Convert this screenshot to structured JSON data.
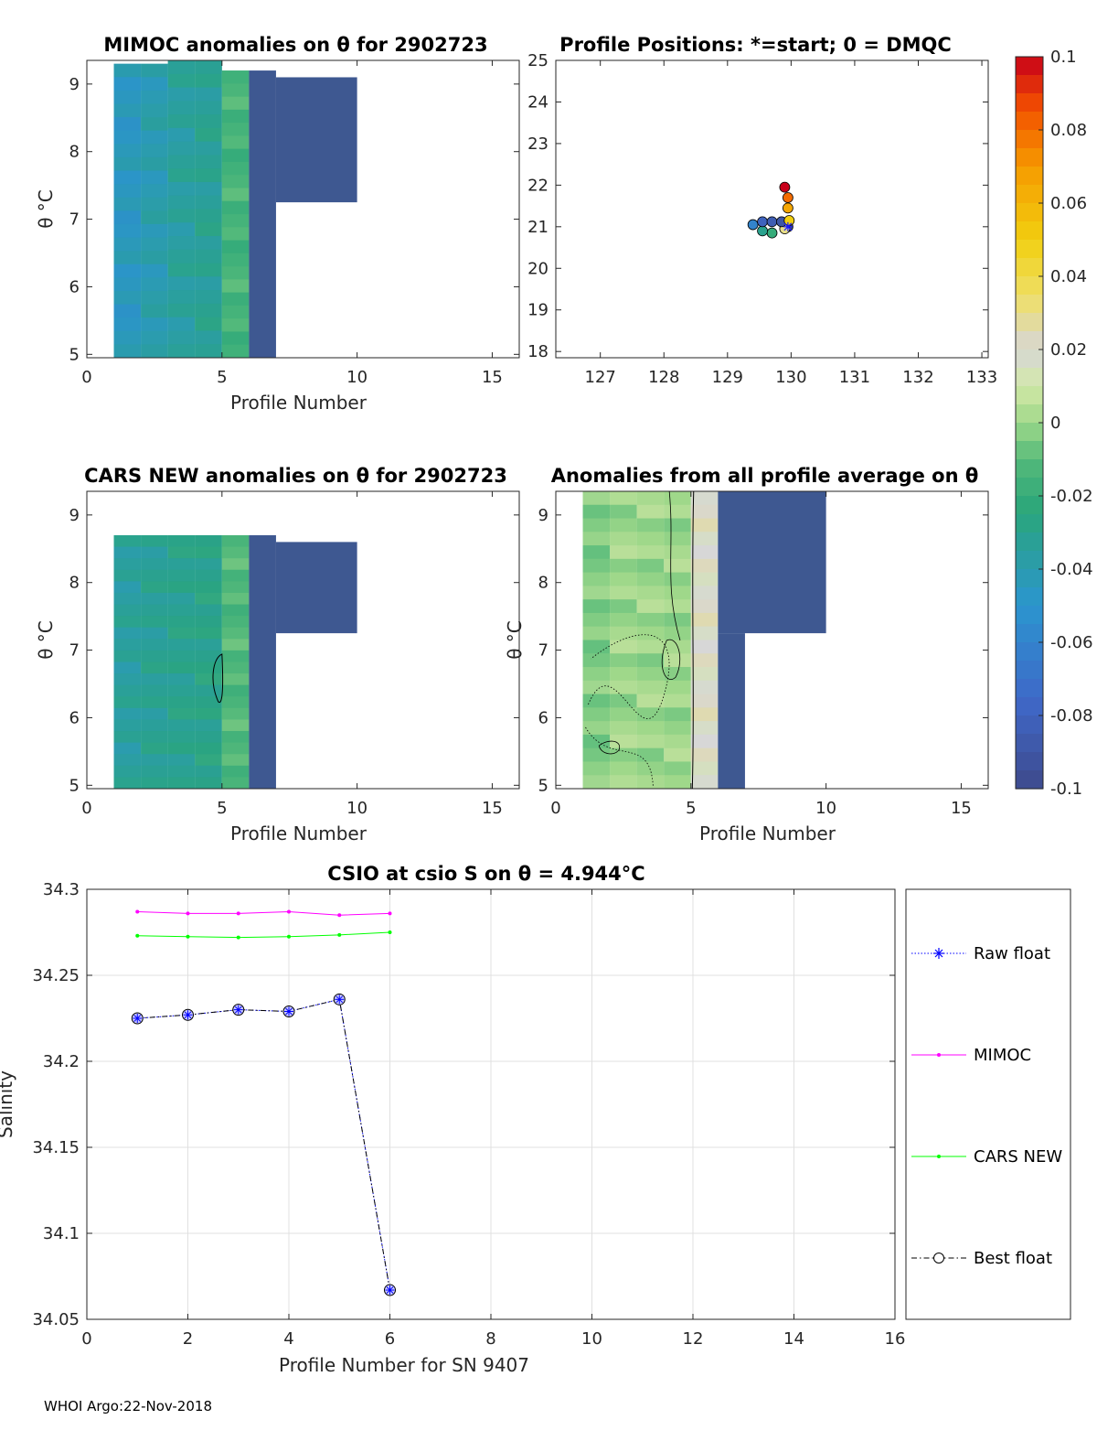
{
  "footer": "WHOI Argo:22-Nov-2018",
  "colorbar": {
    "ticks": [
      "0.1",
      "0.08",
      "0.06",
      "0.04",
      "0.02",
      "0",
      "-0.02",
      "-0.04",
      "-0.06",
      "-0.08",
      "-0.1"
    ],
    "range": [
      -0.1,
      0.1
    ]
  },
  "chart_data": [
    {
      "id": "mimoc",
      "type": "heatmap",
      "title": "MIMOC anomalies on θ  for 2902723",
      "xlabel": "Profile Number",
      "ylabel": "θ °C",
      "xlim": [
        0,
        16
      ],
      "ylim": [
        4.95,
        9.35
      ],
      "xticks": [
        "0",
        "5",
        "10",
        "15"
      ],
      "yticks": [
        "5",
        "6",
        "7",
        "8",
        "9"
      ],
      "columns": [
        {
          "x0": 1,
          "x1": 2,
          "top": 9.3,
          "value": -0.045
        },
        {
          "x0": 2,
          "x1": 3,
          "top": 9.3,
          "value": -0.04
        },
        {
          "x0": 3,
          "x1": 4,
          "top": 9.35,
          "value": -0.035
        },
        {
          "x0": 4,
          "x1": 5,
          "top": 9.35,
          "value": -0.032
        },
        {
          "x0": 5,
          "x1": 6,
          "top": 9.2,
          "value": -0.015
        }
      ],
      "no_data_blocks": [
        {
          "x0": 6,
          "x1": 7,
          "y0": 4.95,
          "y1": 9.2
        },
        {
          "x0": 7,
          "x1": 10,
          "y0": 7.25,
          "y1": 9.1
        }
      ]
    },
    {
      "id": "positions",
      "type": "scatter",
      "title": "Profile Positions: *=start; 0 = DMQC",
      "xlim": [
        126.3,
        133.1
      ],
      "ylim": [
        17.85,
        25
      ],
      "xticks": [
        "127",
        "128",
        "129",
        "130",
        "131",
        "132",
        "133"
      ],
      "yticks": [
        "18",
        "19",
        "20",
        "21",
        "22",
        "23",
        "24",
        "25"
      ],
      "points": [
        {
          "lon": 129.95,
          "lat": 21.0,
          "value": -0.1
        },
        {
          "lon": 129.9,
          "lat": 20.95,
          "value": 0.03
        },
        {
          "lon": 129.7,
          "lat": 20.85,
          "value": -0.02
        },
        {
          "lon": 129.55,
          "lat": 20.9,
          "value": -0.03
        },
        {
          "lon": 129.4,
          "lat": 21.05,
          "value": -0.06
        },
        {
          "lon": 129.55,
          "lat": 21.12,
          "value": -0.08
        },
        {
          "lon": 129.7,
          "lat": 21.12,
          "value": -0.085
        },
        {
          "lon": 129.85,
          "lat": 21.12,
          "value": -0.09
        },
        {
          "lon": 129.97,
          "lat": 21.15,
          "value": 0.05
        },
        {
          "lon": 129.95,
          "lat": 21.45,
          "value": 0.065
        },
        {
          "lon": 129.95,
          "lat": 21.7,
          "value": 0.08
        },
        {
          "lon": 129.9,
          "lat": 21.95,
          "value": 0.1
        }
      ]
    },
    {
      "id": "cars",
      "type": "heatmap",
      "title": "CARS NEW anomalies on θ for 2902723",
      "xlabel": "Profile Number",
      "ylabel": "θ °C",
      "xlim": [
        0,
        16
      ],
      "ylim": [
        4.95,
        9.35
      ],
      "xticks": [
        "0",
        "5",
        "10",
        "15"
      ],
      "yticks": [
        "5",
        "6",
        "7",
        "8",
        "9"
      ],
      "columns": [
        {
          "x0": 1,
          "x1": 2,
          "top": 8.7,
          "value": -0.035
        },
        {
          "x0": 2,
          "x1": 3,
          "top": 8.7,
          "value": -0.032
        },
        {
          "x0": 3,
          "x1": 4,
          "top": 8.7,
          "value": -0.03
        },
        {
          "x0": 4,
          "x1": 5,
          "top": 8.7,
          "value": -0.028
        },
        {
          "x0": 5,
          "x1": 6,
          "top": 8.7,
          "value": -0.012
        }
      ],
      "no_data_blocks": [
        {
          "x0": 6,
          "x1": 7,
          "y0": 4.95,
          "y1": 8.7
        },
        {
          "x0": 7,
          "x1": 10,
          "y0": 7.25,
          "y1": 8.6
        }
      ]
    },
    {
      "id": "allprof",
      "type": "heatmap",
      "title": "Anomalies from all profile average on θ",
      "xlabel": "Profile Number",
      "ylabel": "θ °C",
      "xlim": [
        0,
        16
      ],
      "ylim": [
        4.95,
        9.35
      ],
      "xticks": [
        "0",
        "5",
        "10",
        "15"
      ],
      "yticks": [
        "5",
        "6",
        "7",
        "8",
        "9"
      ],
      "columns": [
        {
          "x0": 1,
          "x1": 2,
          "top": 9.35,
          "value": -0.004
        },
        {
          "x0": 2,
          "x1": 3,
          "top": 9.35,
          "value": 0.0
        },
        {
          "x0": 3,
          "x1": 4,
          "top": 9.35,
          "value": 0.0
        },
        {
          "x0": 4,
          "x1": 5,
          "top": 9.35,
          "value": 0.0
        },
        {
          "x0": 5,
          "x1": 6,
          "top": 9.35,
          "value": 0.02
        }
      ],
      "no_data_blocks": [
        {
          "x0": 6,
          "x1": 10,
          "y0": 7.25,
          "y1": 9.35
        },
        {
          "x0": 6,
          "x1": 7,
          "y0": 4.95,
          "y1": 7.25
        }
      ]
    },
    {
      "id": "csio",
      "type": "line",
      "title": "CSIO at csio S on θ = 4.944°C",
      "xlabel": "Profile Number for SN 9407",
      "ylabel": "Salinity",
      "xlim": [
        0,
        16
      ],
      "ylim": [
        34.05,
        34.3
      ],
      "xticks": [
        "0",
        "2",
        "4",
        "6",
        "8",
        "10",
        "12",
        "14",
        "16"
      ],
      "yticks": [
        "34.05",
        "34.1",
        "34.15",
        "34.2",
        "34.25",
        "34.3"
      ],
      "x": [
        1,
        2,
        3,
        4,
        5,
        6
      ],
      "series": [
        {
          "name": "Raw float",
          "color": "#0000ff",
          "values": [
            34.225,
            34.227,
            34.23,
            34.229,
            34.236,
            34.067
          ]
        },
        {
          "name": "MIMOC",
          "color": "#ff00ff",
          "values": [
            34.287,
            34.286,
            34.286,
            34.287,
            34.285,
            34.286
          ]
        },
        {
          "name": "CARS NEW",
          "color": "#00ff00",
          "values": [
            34.273,
            34.2725,
            34.272,
            34.2725,
            34.2735,
            34.275
          ]
        },
        {
          "name": "Best float",
          "color": "#000000",
          "values": [
            34.225,
            34.227,
            34.23,
            34.229,
            34.236,
            34.067
          ]
        }
      ]
    }
  ]
}
